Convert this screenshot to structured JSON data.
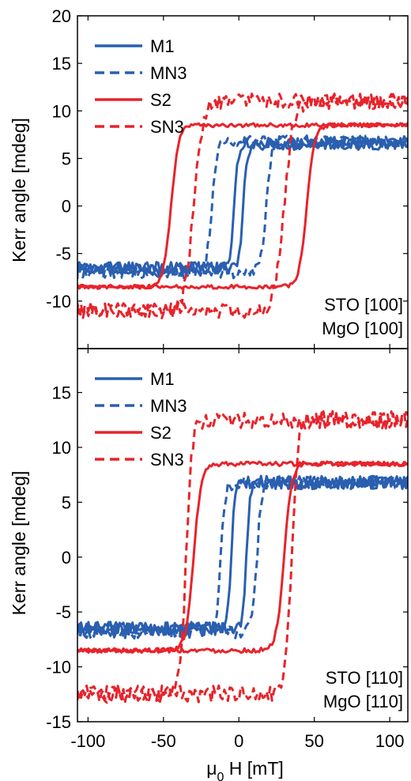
{
  "figure": {
    "xlabel": "μ0 H [mT]",
    "xlabel_main": "μ",
    "xlabel_sub": "0",
    "xlabel_rest": " H [mT]",
    "colors": {
      "blue": "#2a5fb0",
      "red": "#e8232b",
      "axis": "#000000"
    },
    "legend": [
      {
        "name": "M1",
        "color": "#2a5fb0",
        "dash": "solid"
      },
      {
        "name": "MN3",
        "color": "#2a5fb0",
        "dash": "dashed"
      },
      {
        "name": "S2",
        "color": "#e8232b",
        "dash": "solid"
      },
      {
        "name": "SN3",
        "color": "#e8232b",
        "dash": "dashed"
      }
    ]
  },
  "chart_data": [
    {
      "type": "line",
      "panel": "top",
      "ylabel": "Kerr angle [mdeg]",
      "xlim": [
        -107,
        112
      ],
      "ylim": [
        -15,
        20
      ],
      "yticks": [
        -10,
        -5,
        0,
        5,
        10,
        15,
        20
      ],
      "xticks": [
        -100,
        -50,
        0,
        50,
        100
      ],
      "annotation": [
        "STO  [100]",
        "MgO [100]"
      ],
      "series": [
        {
          "name": "M1",
          "style": "solid",
          "color": "#2a5fb0",
          "saturation": [
            -6.5,
            6.5
          ],
          "coercive_field": 3,
          "width": 2.5,
          "noise": 0.6
        },
        {
          "name": "MN3",
          "style": "dashed",
          "color": "#2a5fb0",
          "saturation": [
            -7,
            6.8
          ],
          "coercive_field": 18,
          "width": 3.5,
          "noise": 0.6
        },
        {
          "name": "S2",
          "style": "solid",
          "color": "#e8232b",
          "saturation": [
            -8.5,
            8.5
          ],
          "coercive_field": 45,
          "width": 5,
          "noise": 0.2
        },
        {
          "name": "SN3",
          "style": "dashed",
          "color": "#e8232b",
          "saturation": [
            -11,
            11
          ],
          "coercive_field": 30,
          "width": 6,
          "noise": 0.8
        }
      ]
    },
    {
      "type": "line",
      "panel": "bottom",
      "ylabel": "Kerr angle [mdeg]",
      "xlim": [
        -107,
        112
      ],
      "ylim": [
        -15,
        19
      ],
      "yticks": [
        -15,
        -10,
        -5,
        0,
        5,
        10,
        15
      ],
      "xticks": [
        -100,
        -50,
        0,
        50,
        100
      ],
      "annotation": [
        "STO  [110]",
        "MgO [110]"
      ],
      "series": [
        {
          "name": "M1",
          "style": "solid",
          "color": "#2a5fb0",
          "saturation": [
            -6.5,
            6.8
          ],
          "coercive_field": 5,
          "width": 2.5,
          "noise": 0.6
        },
        {
          "name": "MN3",
          "style": "dashed",
          "color": "#2a5fb0",
          "saturation": [
            -6.8,
            6.8
          ],
          "coercive_field": 12,
          "width": 3,
          "noise": 0.6
        },
        {
          "name": "S2",
          "style": "solid",
          "color": "#e8232b",
          "saturation": [
            -8.5,
            8.5
          ],
          "coercive_field": 30,
          "width": 5,
          "noise": 0.2
        },
        {
          "name": "SN3",
          "style": "dashed",
          "color": "#e8232b",
          "saturation": [
            -12.5,
            12.5
          ],
          "coercive_field": 35,
          "width": 4,
          "noise": 0.8
        }
      ]
    }
  ]
}
